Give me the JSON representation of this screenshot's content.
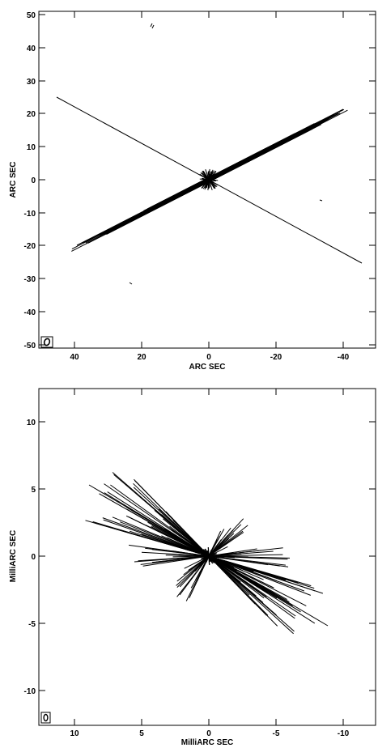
{
  "panels": [
    {
      "id": "top",
      "xlabel": "ARC SEC",
      "ylabel": "ARC SEC",
      "xlim": [
        50,
        -50
      ],
      "ylim": [
        -51,
        51
      ],
      "xticks": [
        {
          "value": 40,
          "label": "40"
        },
        {
          "value": 20,
          "label": "20"
        },
        {
          "value": 0,
          "label": "0"
        },
        {
          "value": -20,
          "label": "-20"
        },
        {
          "value": -40,
          "label": "-40"
        }
      ],
      "yticks": [
        {
          "value": 50,
          "label": "50"
        },
        {
          "value": 40,
          "label": "40"
        },
        {
          "value": 30,
          "label": "30"
        },
        {
          "value": 20,
          "label": "20"
        },
        {
          "value": 10,
          "label": "10"
        },
        {
          "value": 0,
          "label": "0"
        },
        {
          "value": -10,
          "label": "-10"
        },
        {
          "value": -20,
          "label": "-20"
        },
        {
          "value": -30,
          "label": "-30"
        },
        {
          "value": -40,
          "label": "-40"
        },
        {
          "value": -50,
          "label": "-50"
        }
      ]
    },
    {
      "id": "bottom",
      "xlabel": "MilliARC SEC",
      "ylabel": "MilliARC SEC",
      "xlim": [
        12.5,
        -12.5
      ],
      "ylim": [
        -12.5,
        12.5
      ],
      "xticks": [
        {
          "value": 10,
          "label": "10"
        },
        {
          "value": 5,
          "label": "5"
        },
        {
          "value": 0,
          "label": "0"
        },
        {
          "value": -5,
          "label": "-5"
        },
        {
          "value": -10,
          "label": "-10"
        }
      ],
      "yticks": [
        {
          "value": 10,
          "label": "10"
        },
        {
          "value": 5,
          "label": "5"
        },
        {
          "value": 0,
          "label": "0"
        },
        {
          "value": -5,
          "label": "-5"
        },
        {
          "value": -10,
          "label": "-10"
        }
      ]
    }
  ]
}
